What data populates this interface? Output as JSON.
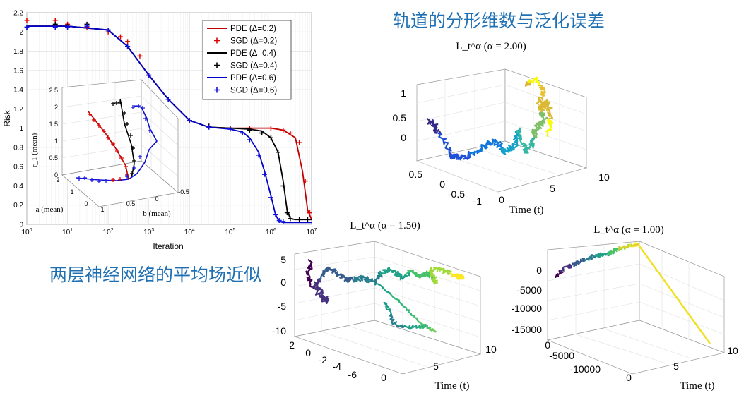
{
  "captions": {
    "top_right": "轨道的分形维数与泛化误差",
    "left": "两层神经网络的平均场近似"
  },
  "chart_data": [
    {
      "type": "line",
      "id": "risk_vs_iteration",
      "xlabel": "Iteration",
      "ylabel": "Risk",
      "xscale": "log",
      "xlim": [
        1,
        10000000
      ],
      "ylim": [
        0,
        2.2
      ],
      "xticks": [
        "10^0",
        "10^1",
        "10^2",
        "10^3",
        "10^4",
        "10^5",
        "10^6",
        "10^7"
      ],
      "yticks": [
        "0",
        "0.2",
        "0.4",
        "0.6",
        "0.8",
        "1",
        "1.2",
        "1.4",
        "1.6",
        "1.8",
        "2",
        "2.2"
      ],
      "grid": true,
      "legend_position": "top-right",
      "legend": [
        "PDE (Δ=0.2)",
        "SGD (Δ=0.2)",
        "PDE (Δ=0.4)",
        "SGD (Δ=0.4)",
        "PDE (Δ=0.6)",
        "SGD (Δ=0.6)"
      ],
      "series": [
        {
          "name": "PDE (Δ=0.2)",
          "style": "line",
          "color": "#c00000",
          "x": [
            1,
            10,
            100,
            300,
            1000,
            3000,
            10000,
            30000,
            100000,
            300000,
            1000000,
            2000000,
            4000000,
            6000000,
            8000000,
            10000000
          ],
          "y": [
            2.06,
            2.06,
            2.02,
            1.85,
            1.55,
            1.3,
            1.08,
            1.01,
            1.0,
            1.0,
            1.0,
            0.98,
            0.9,
            0.55,
            0.15,
            0.05
          ]
        },
        {
          "name": "SGD (Δ=0.2)",
          "style": "plus",
          "color": "#e00000",
          "x": [
            1,
            5,
            10,
            30,
            100,
            200,
            300,
            600,
            1000,
            3000,
            10000,
            30000,
            100000,
            300000,
            1000000,
            2000000,
            3000000,
            5000000,
            7000000,
            9000000
          ],
          "y": [
            2.12,
            2.12,
            2.08,
            2.05,
            2.0,
            1.95,
            1.9,
            1.75,
            1.55,
            1.3,
            1.08,
            1.02,
            1.0,
            1.0,
            1.0,
            0.98,
            0.95,
            0.85,
            0.45,
            0.12
          ]
        },
        {
          "name": "PDE (Δ=0.4)",
          "style": "line",
          "color": "#000000",
          "x": [
            1,
            10,
            100,
            300,
            1000,
            3000,
            10000,
            30000,
            100000,
            300000,
            600000,
            1000000,
            1500000,
            2000000,
            2500000,
            3000000,
            4000000,
            10000000
          ],
          "y": [
            2.06,
            2.06,
            2.02,
            1.85,
            1.55,
            1.3,
            1.08,
            1.01,
            1.0,
            0.99,
            0.97,
            0.9,
            0.75,
            0.45,
            0.15,
            0.06,
            0.05,
            0.05
          ]
        },
        {
          "name": "SGD (Δ=0.4)",
          "style": "plus",
          "color": "#000000",
          "x": [
            1,
            5,
            10,
            30,
            100,
            300,
            1000,
            3000,
            10000,
            30000,
            100000,
            300000,
            600000,
            1000000,
            1500000,
            2000000,
            2500000,
            3000000,
            5000000,
            8000000
          ],
          "y": [
            2.05,
            2.08,
            2.06,
            2.08,
            2.02,
            1.85,
            1.55,
            1.3,
            1.08,
            1.02,
            1.0,
            0.98,
            0.95,
            0.9,
            0.75,
            0.4,
            0.12,
            0.06,
            0.05,
            0.05
          ]
        },
        {
          "name": "PDE (Δ=0.6)",
          "style": "line",
          "color": "#0000c8",
          "x": [
            1,
            10,
            100,
            300,
            1000,
            3000,
            10000,
            30000,
            100000,
            200000,
            300000,
            500000,
            700000,
            1000000,
            1300000,
            1600000,
            2000000,
            3000000,
            10000000
          ],
          "y": [
            2.06,
            2.06,
            2.02,
            1.85,
            1.55,
            1.3,
            1.08,
            1.01,
            0.99,
            0.96,
            0.9,
            0.75,
            0.55,
            0.3,
            0.1,
            0.03,
            0.02,
            0.02,
            0.02
          ]
        },
        {
          "name": "SGD (Δ=0.6)",
          "style": "plus",
          "color": "#1010e0",
          "x": [
            1,
            5,
            10,
            30,
            100,
            300,
            1000,
            3000,
            10000,
            30000,
            100000,
            200000,
            300000,
            500000,
            700000,
            1000000,
            1300000,
            1600000,
            2000000
          ],
          "y": [
            2.05,
            2.05,
            2.05,
            2.06,
            2.02,
            1.85,
            1.55,
            1.3,
            1.08,
            1.01,
            0.99,
            0.95,
            0.88,
            0.72,
            0.52,
            0.28,
            0.1,
            0.04,
            0.03
          ]
        }
      ]
    },
    {
      "type": "line",
      "id": "inset_3d",
      "zlabel": "r_1 (mean)",
      "xlabel": "a (mean)",
      "ylabel": "b (mean)",
      "zticks": [
        "0",
        "0.5",
        "1",
        "1.5",
        "2",
        "2.5"
      ],
      "aticks": [
        "0",
        "1",
        "2"
      ],
      "bticks": [
        "1",
        "0.5",
        "0",
        "-0.5"
      ]
    },
    {
      "type": "line",
      "id": "levy_alpha_2",
      "title": "L_t^α (α = 2.00)",
      "xlabel": "Time (t)",
      "zticks": [
        "0",
        "0.5",
        "1"
      ],
      "yticks": [
        "0.5",
        "0",
        "-0.5",
        "-1"
      ],
      "xticks": [
        "0",
        "5",
        "10"
      ]
    },
    {
      "type": "line",
      "id": "levy_alpha_1_5",
      "title": "L_t^α (α = 1.50)",
      "xlabel": "Time (t)",
      "zticks": [
        "5",
        "0",
        "-5",
        "-10"
      ],
      "yticks": [
        "2",
        "0",
        "-2",
        "-4",
        "-6"
      ],
      "xticks": [
        "0",
        "5",
        "10"
      ]
    },
    {
      "type": "line",
      "id": "levy_alpha_1",
      "title": "L_t^α (α = 1.00)",
      "xlabel": "Time (t)",
      "zticks": [
        "0",
        "-5000",
        "-10000",
        "-15000"
      ],
      "yticks": [
        "0",
        "-5000",
        "-10000"
      ],
      "xticks": [
        "0",
        "5",
        "10"
      ]
    }
  ]
}
